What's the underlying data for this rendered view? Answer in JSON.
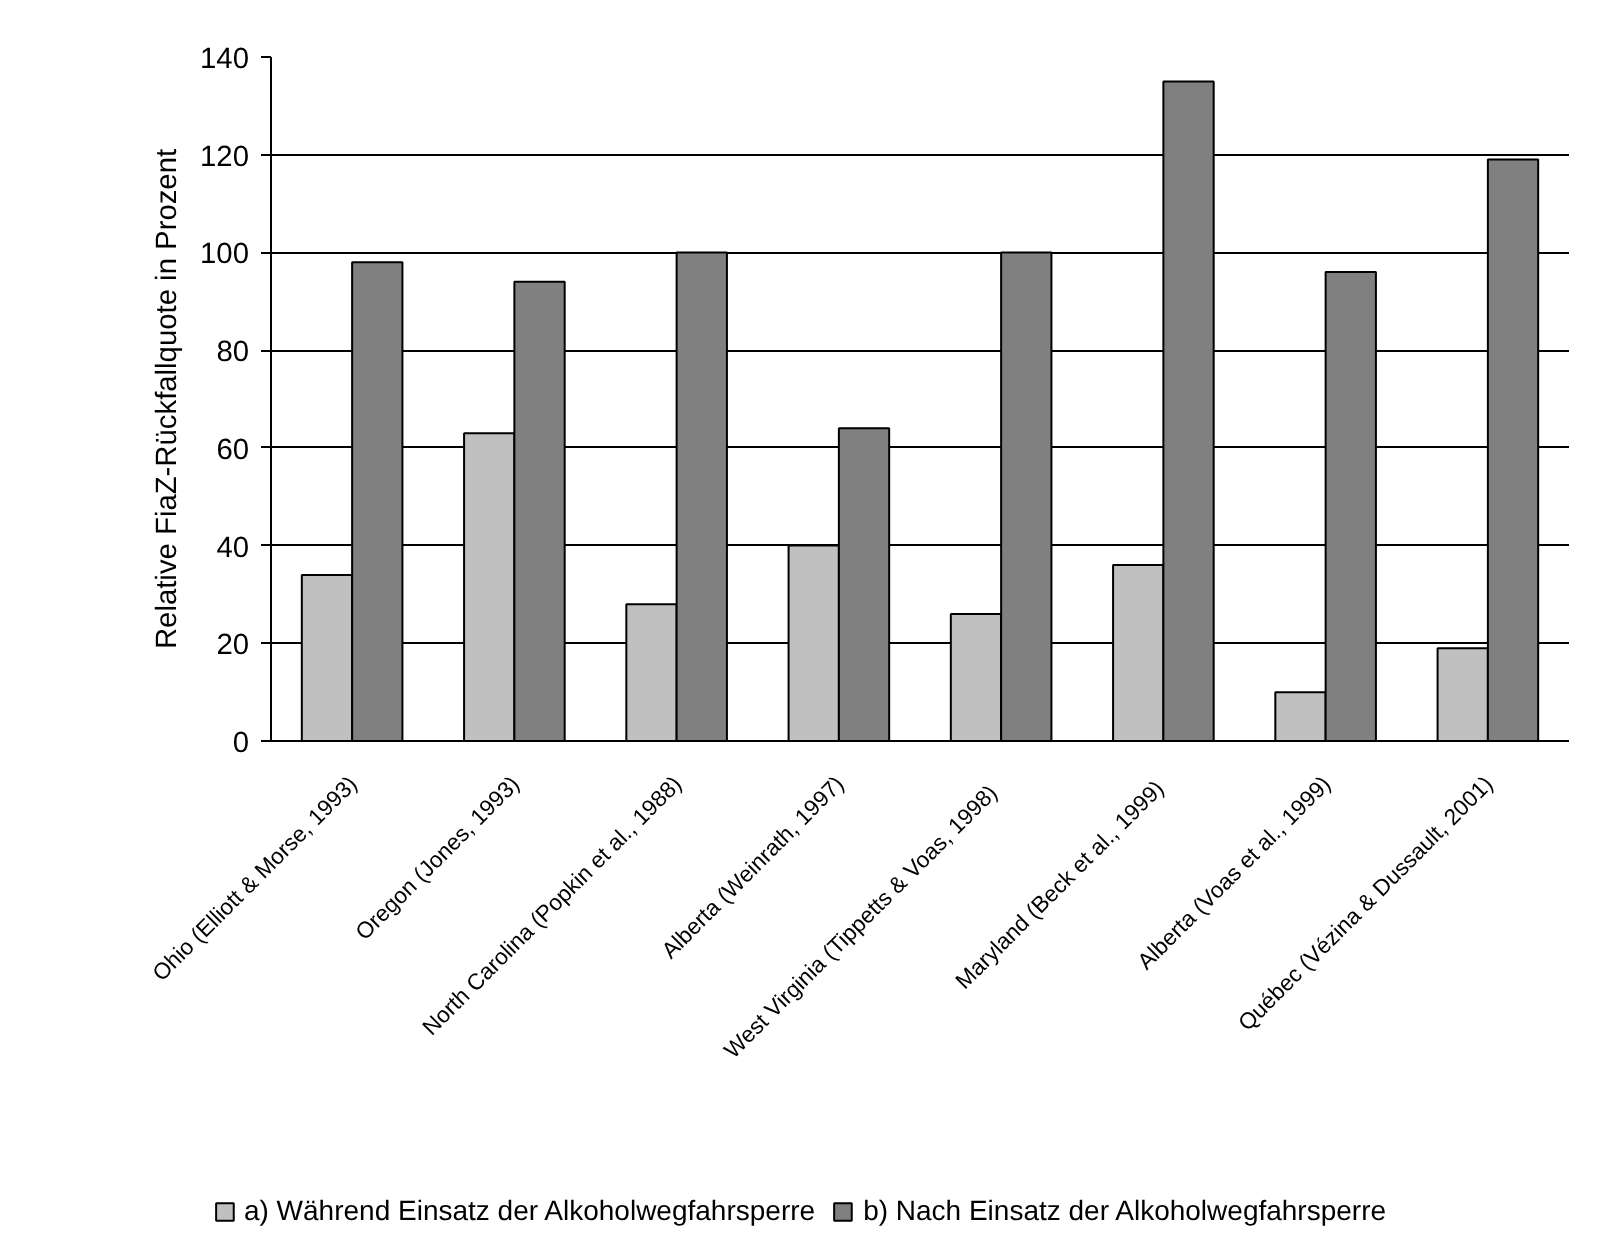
{
  "chart_data": {
    "type": "bar",
    "ylabel": "Relative FiaZ-Rückfallquote in Prozent",
    "categories": [
      "Ohio  (Elliott & Morse, 1993)",
      "Oregon  (Jones, 1993)",
      "North Carolina  (Popkin et al., 1988)",
      "Alberta  (Weinrath, 1997)",
      "West  Virginia  (Tippetts  & Voas, 1998)",
      "Maryland  (Beck et  al., 1999)",
      "Alberta  (Voas et al., 1999)",
      "Québec  (Vézina & Dussault, 2001)"
    ],
    "series": [
      {
        "name": "a) Während Einsatz der Alkoholwegfahrsperre",
        "color": "#c0c0c0",
        "values": [
          34,
          63,
          28,
          40,
          26,
          36,
          10,
          19
        ]
      },
      {
        "name": "b) Nach Einsatz der Alkoholwegfahrsperre",
        "color": "#808080",
        "values": [
          98,
          94,
          100,
          64,
          100,
          135,
          96,
          119
        ]
      }
    ],
    "ylim": [
      0,
      140
    ],
    "yticks": [
      0,
      20,
      40,
      60,
      80,
      100,
      120,
      140
    ],
    "grid": "y",
    "legend": "bottom"
  }
}
